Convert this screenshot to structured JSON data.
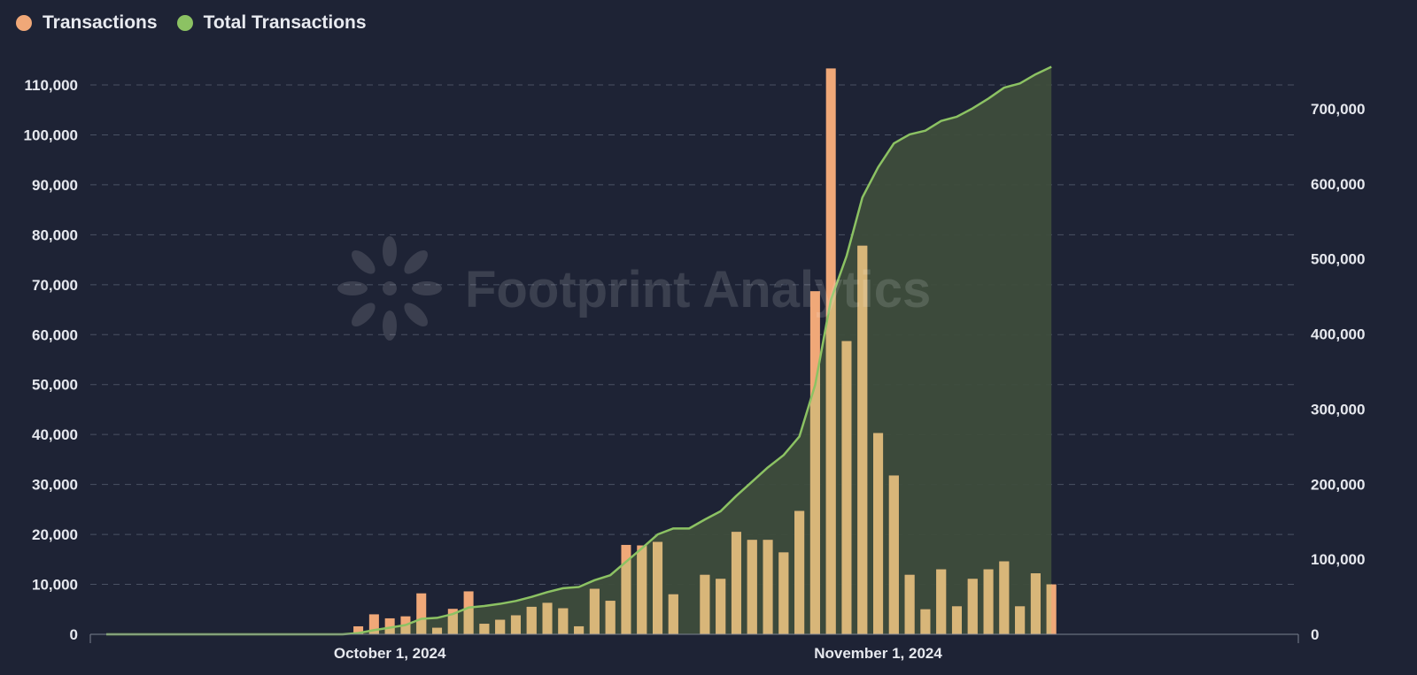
{
  "legend": {
    "items": [
      {
        "label": "Transactions",
        "color": "#f0a878"
      },
      {
        "label": "Total Transactions",
        "color": "#8cc263"
      }
    ]
  },
  "watermark": {
    "text": "Footprint Analytics"
  },
  "colors": {
    "background": "#1e2335",
    "bar": "#f0a878",
    "bar_over_area": "#d8b679",
    "line": "#8cc263",
    "area": "#3e4d3c",
    "grid": "#4a5163"
  },
  "chart_data": {
    "type": "bar",
    "x_start": "2024-09-13",
    "x_end": "2024-11-27",
    "x_ticks": [
      {
        "date": "2024-10-01",
        "label": "October 1, 2024"
      },
      {
        "date": "2024-11-01",
        "label": "November 1, 2024"
      }
    ],
    "y_left": {
      "min": 0,
      "max": 110000,
      "ticks": [
        0,
        10000,
        20000,
        30000,
        40000,
        50000,
        60000,
        70000,
        80000,
        90000,
        100000,
        110000
      ]
    },
    "y_right": {
      "min": 0,
      "max": 700000,
      "ticks": [
        0,
        100000,
        200000,
        300000,
        400000,
        500000,
        600000,
        700000
      ]
    },
    "grid": true,
    "legend_position": "top-left",
    "series": [
      {
        "name": "Transactions",
        "type": "bar",
        "axis": "left",
        "points": [
          [
            "2024-09-29",
            1600
          ],
          [
            "2024-09-30",
            4000
          ],
          [
            "2024-10-01",
            3200
          ],
          [
            "2024-10-02",
            3600
          ],
          [
            "2024-10-03",
            8200
          ],
          [
            "2024-10-04",
            1300
          ],
          [
            "2024-10-05",
            5100
          ],
          [
            "2024-10-06",
            8600
          ],
          [
            "2024-10-07",
            2100
          ],
          [
            "2024-10-08",
            2900
          ],
          [
            "2024-10-09",
            3800
          ],
          [
            "2024-10-10",
            5500
          ],
          [
            "2024-10-11",
            6300
          ],
          [
            "2024-10-12",
            5200
          ],
          [
            "2024-10-13",
            1600
          ],
          [
            "2024-10-14",
            9100
          ],
          [
            "2024-10-15",
            6700
          ],
          [
            "2024-10-16",
            17900
          ],
          [
            "2024-10-17",
            17800
          ],
          [
            "2024-10-18",
            18500
          ],
          [
            "2024-10-19",
            8000
          ],
          [
            "2024-10-21",
            11900
          ],
          [
            "2024-10-22",
            11100
          ],
          [
            "2024-10-23",
            20500
          ],
          [
            "2024-10-24",
            18900
          ],
          [
            "2024-10-25",
            18900
          ],
          [
            "2024-10-26",
            16400
          ],
          [
            "2024-10-27",
            24700
          ],
          [
            "2024-10-28",
            68700
          ],
          [
            "2024-10-29",
            113300
          ],
          [
            "2024-10-30",
            58700
          ],
          [
            "2024-10-31",
            77800
          ],
          [
            "2024-11-01",
            40300
          ],
          [
            "2024-11-02",
            31800
          ],
          [
            "2024-11-03",
            11900
          ],
          [
            "2024-11-04",
            5000
          ],
          [
            "2024-11-05",
            13000
          ],
          [
            "2024-11-06",
            5600
          ],
          [
            "2024-11-07",
            11100
          ],
          [
            "2024-11-08",
            13000
          ],
          [
            "2024-11-09",
            14600
          ],
          [
            "2024-11-10",
            5600
          ],
          [
            "2024-11-11",
            12200
          ],
          [
            "2024-11-12",
            10000
          ]
        ]
      },
      {
        "name": "Total Transactions",
        "type": "area",
        "axis": "right",
        "points": [
          [
            "2024-09-13",
            0
          ],
          [
            "2024-09-28",
            0
          ],
          [
            "2024-09-29",
            1600
          ],
          [
            "2024-09-30",
            5600
          ],
          [
            "2024-10-01",
            8800
          ],
          [
            "2024-10-02",
            12400
          ],
          [
            "2024-10-03",
            20600
          ],
          [
            "2024-10-04",
            21900
          ],
          [
            "2024-10-05",
            27000
          ],
          [
            "2024-10-06",
            35600
          ],
          [
            "2024-10-07",
            37700
          ],
          [
            "2024-10-08",
            40600
          ],
          [
            "2024-10-09",
            44400
          ],
          [
            "2024-10-10",
            49900
          ],
          [
            "2024-10-11",
            56200
          ],
          [
            "2024-10-12",
            61400
          ],
          [
            "2024-10-13",
            63000
          ],
          [
            "2024-10-14",
            72100
          ],
          [
            "2024-10-15",
            78800
          ],
          [
            "2024-10-16",
            96700
          ],
          [
            "2024-10-17",
            114500
          ],
          [
            "2024-10-18",
            133000
          ],
          [
            "2024-10-19",
            141000
          ],
          [
            "2024-10-20",
            141000
          ],
          [
            "2024-10-21",
            152900
          ],
          [
            "2024-10-22",
            164000
          ],
          [
            "2024-10-23",
            184500
          ],
          [
            "2024-10-24",
            203400
          ],
          [
            "2024-10-25",
            222300
          ],
          [
            "2024-10-26",
            238700
          ],
          [
            "2024-10-27",
            263400
          ],
          [
            "2024-10-28",
            332100
          ],
          [
            "2024-10-29",
            445400
          ],
          [
            "2024-10-30",
            504100
          ],
          [
            "2024-10-31",
            581900
          ],
          [
            "2024-11-01",
            622200
          ],
          [
            "2024-11-02",
            654000
          ],
          [
            "2024-11-03",
            665900
          ],
          [
            "2024-11-04",
            670900
          ],
          [
            "2024-11-05",
            683900
          ],
          [
            "2024-11-06",
            689500
          ],
          [
            "2024-11-07",
            700600
          ],
          [
            "2024-11-08",
            713600
          ],
          [
            "2024-11-09",
            728200
          ],
          [
            "2024-11-10",
            733800
          ],
          [
            "2024-11-11",
            746000
          ],
          [
            "2024-11-12",
            756000
          ]
        ]
      }
    ]
  }
}
